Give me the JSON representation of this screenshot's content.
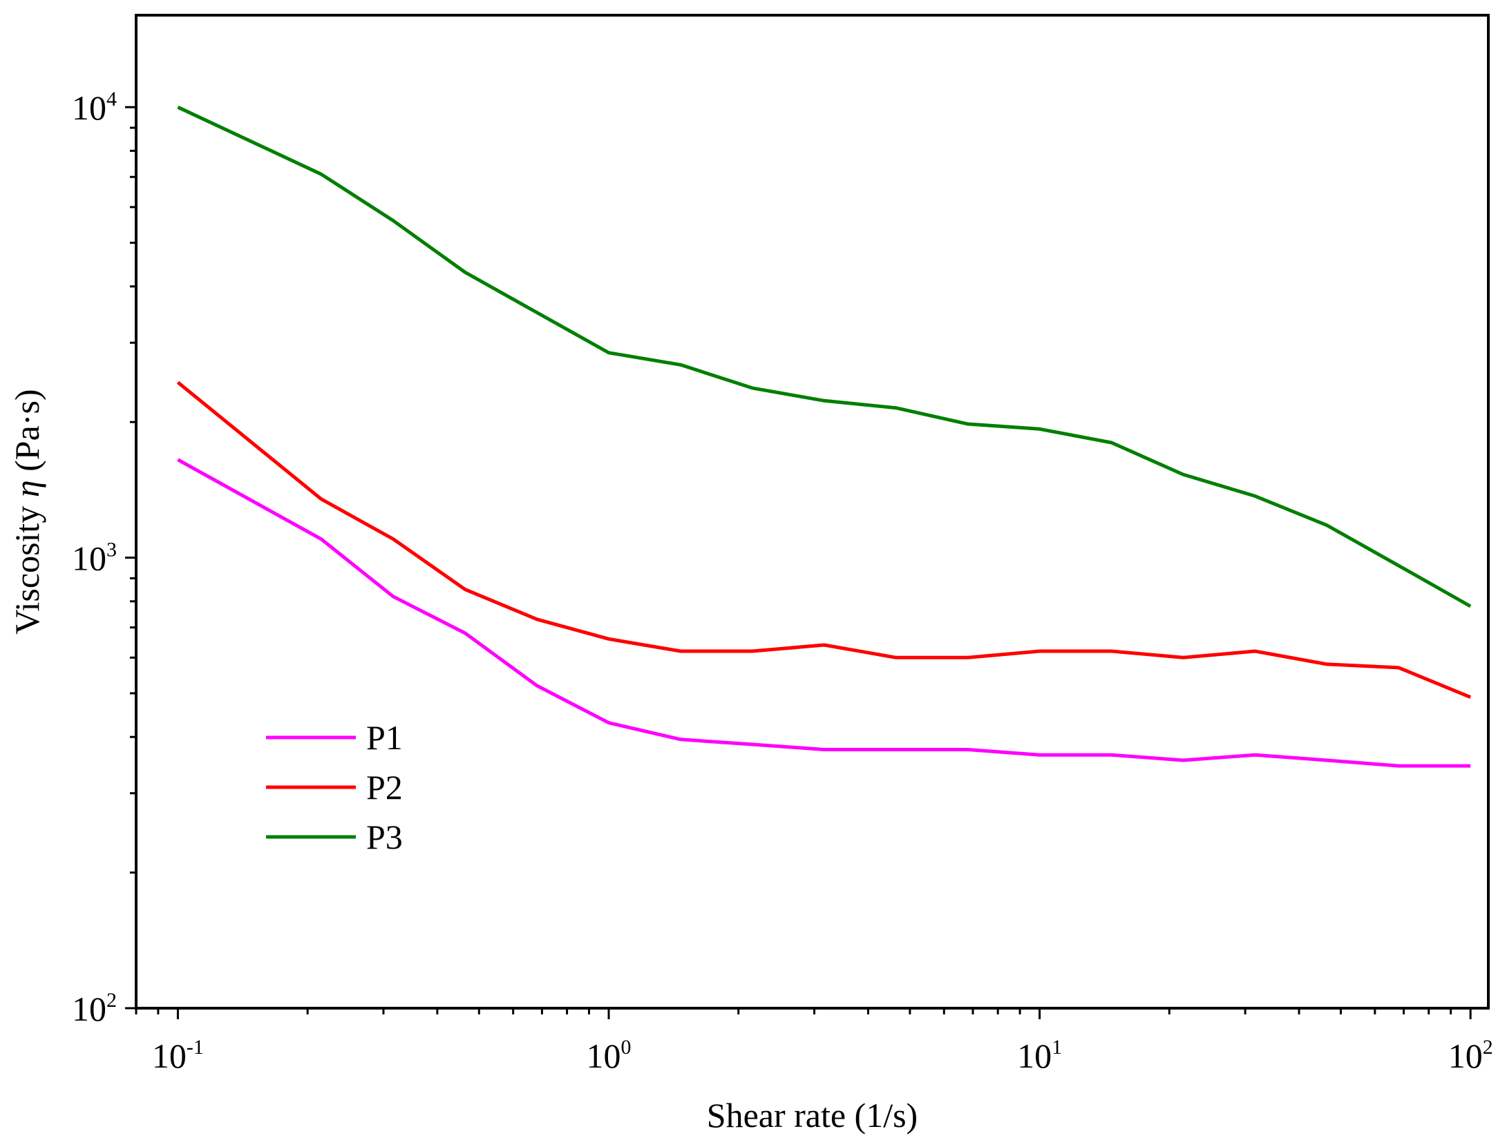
{
  "chart_data": {
    "type": "line",
    "title": "",
    "xlabel": "Shear rate (1/s)",
    "ylabel_prefix": "Viscosity ",
    "ylabel_symbol": "η",
    "ylabel_suffix": " (Pa·s)",
    "xscale": "log",
    "yscale": "log",
    "xlim": [
      0.08,
      110
    ],
    "ylim": [
      100,
      16000
    ],
    "grid": false,
    "legend_position": "lower-left",
    "x_ticks": [
      {
        "base": "10",
        "exp": "-1",
        "value": 0.1
      },
      {
        "base": "10",
        "exp": "0",
        "value": 1
      },
      {
        "base": "10",
        "exp": "1",
        "value": 10
      },
      {
        "base": "10",
        "exp": "2",
        "value": 100
      }
    ],
    "y_ticks": [
      {
        "base": "10",
        "exp": "2",
        "value": 100
      },
      {
        "base": "10",
        "exp": "3",
        "value": 1000
      },
      {
        "base": "10",
        "exp": "4",
        "value": 10000
      }
    ],
    "x": [
      0.1,
      0.215,
      0.316,
      0.464,
      0.681,
      1.0,
      1.468,
      2.154,
      3.162,
      4.642,
      6.813,
      10.0,
      14.68,
      21.54,
      31.62,
      46.42,
      68.13,
      100.0
    ],
    "series": [
      {
        "name": "P1",
        "color": "#ff00ff",
        "values": [
          1650,
          1100,
          820,
          680,
          520,
          430,
          395,
          385,
          375,
          375,
          375,
          365,
          365,
          355,
          365,
          355,
          345,
          345
        ]
      },
      {
        "name": "P2",
        "color": "#ff0000",
        "values": [
          2450,
          1350,
          1100,
          850,
          730,
          660,
          620,
          620,
          640,
          600,
          600,
          620,
          620,
          600,
          620,
          580,
          570,
          490
        ]
      },
      {
        "name": "P3",
        "color": "#007f00",
        "values": [
          10000,
          7100,
          5600,
          4300,
          3500,
          2850,
          2680,
          2380,
          2230,
          2150,
          1980,
          1930,
          1800,
          1530,
          1370,
          1180,
          960,
          780
        ]
      }
    ]
  }
}
